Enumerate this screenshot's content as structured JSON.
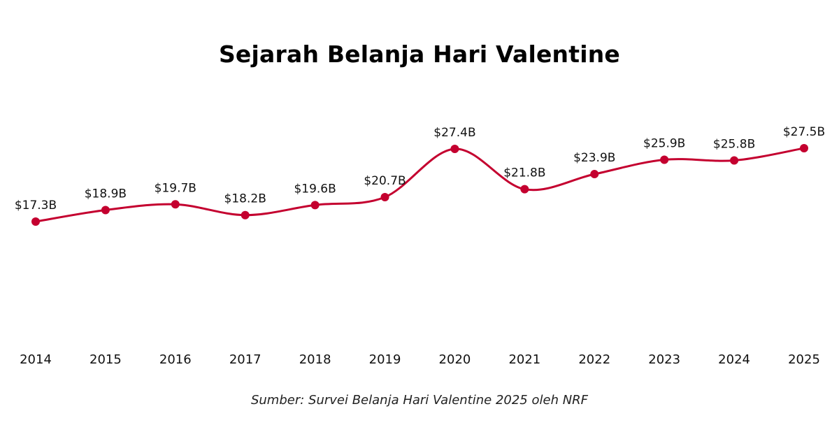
{
  "chart_data": {
    "type": "line",
    "title": "Sejarah Belanja Hari Valentine",
    "source": "Sumber: Survei Belanja Hari Valentine 2025 oleh NRF",
    "xlabel": "",
    "ylabel": "",
    "categories": [
      "2014",
      "2015",
      "2016",
      "2017",
      "2018",
      "2019",
      "2020",
      "2021",
      "2022",
      "2023",
      "2024",
      "2025"
    ],
    "values": [
      17.3,
      18.9,
      19.7,
      18.2,
      19.6,
      20.7,
      27.4,
      21.8,
      23.9,
      25.9,
      25.8,
      27.5
    ],
    "data_labels": [
      "$17.3B",
      "$18.9B",
      "$19.7B",
      "$18.2B",
      "$19.6B",
      "$20.7B",
      "$27.4B",
      "$21.8B",
      "$23.9B",
      "$25.9B",
      "$25.8B",
      "$27.5B"
    ],
    "line_color": "#c4002f",
    "grid": false,
    "legend": "none",
    "smooth": true
  }
}
